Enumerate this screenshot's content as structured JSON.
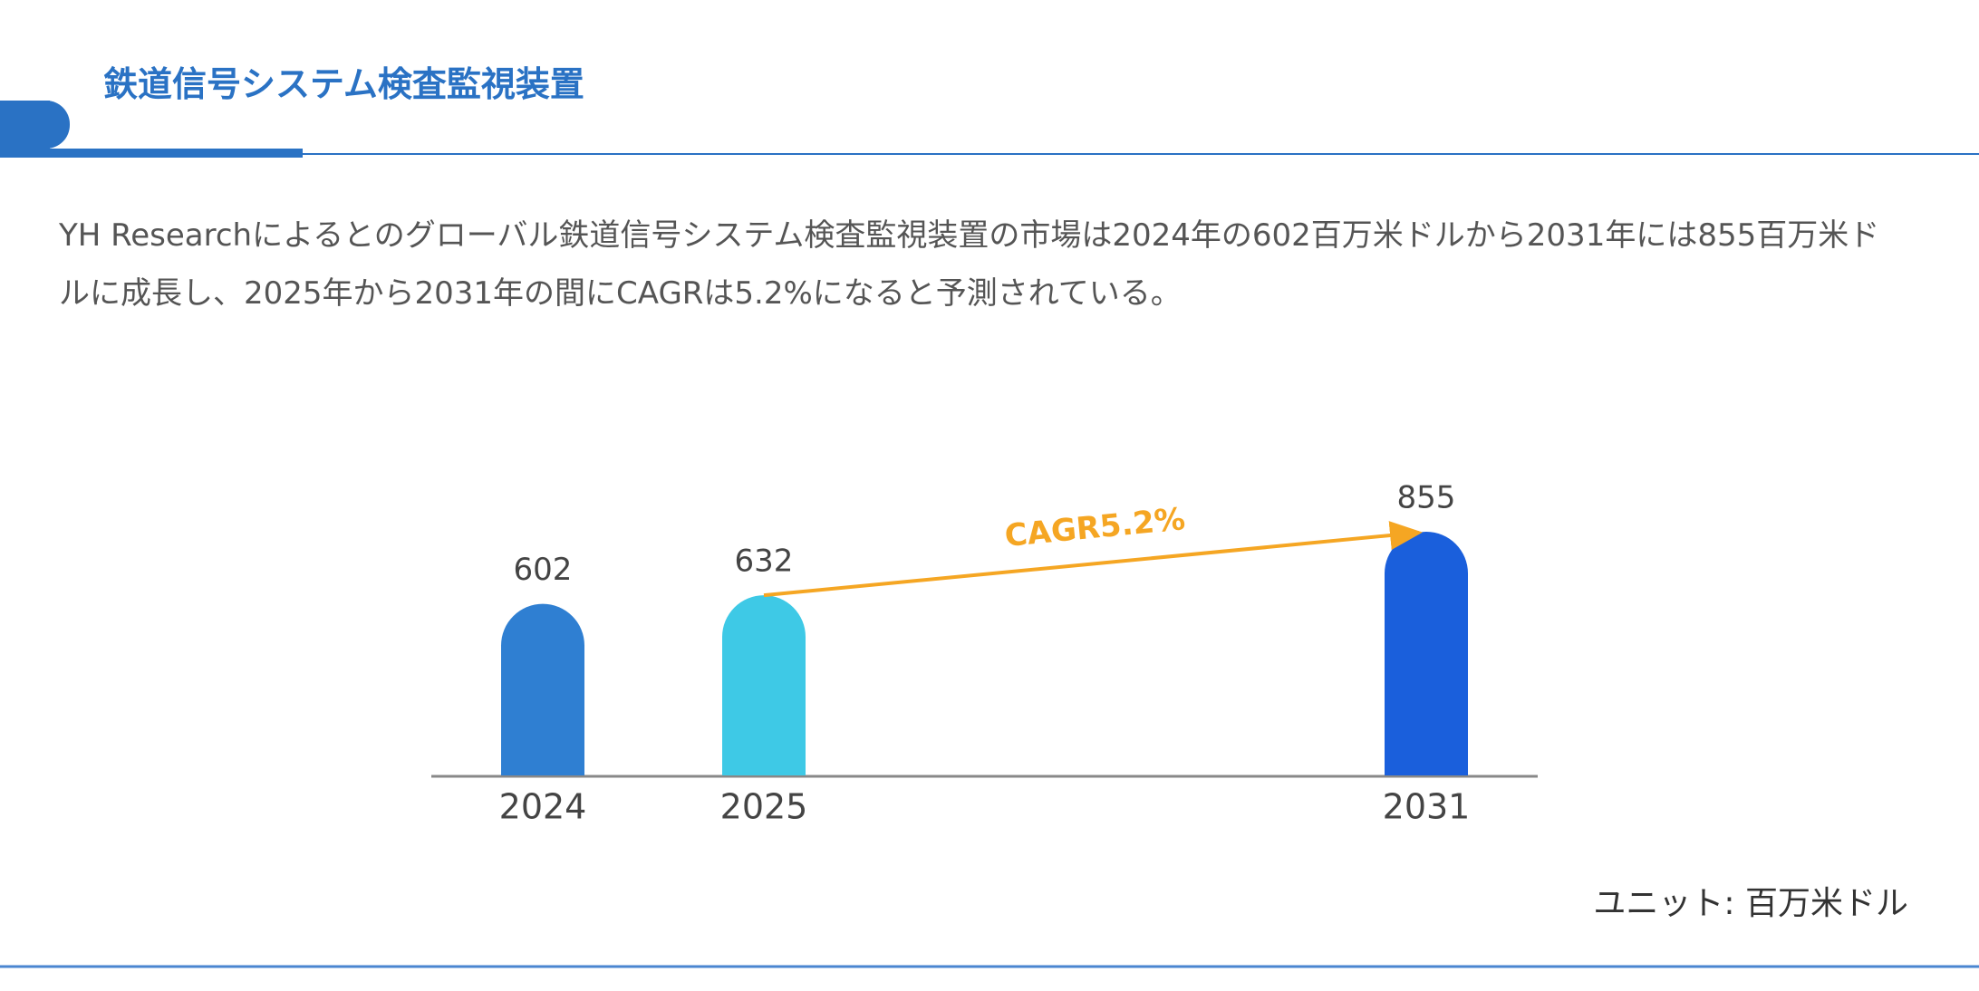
{
  "header": {
    "title": "鉄道信号システム検査監視装置"
  },
  "description": "YH Researchによるとのグローバル鉄道信号システム検査監視装置の市場は2024年の602百万米ドルから2031年には855百万米ドルに成長し、2025年から2031年の間にCAGRは5.2%になると予測されている。",
  "chart_data": {
    "type": "bar",
    "categories": [
      "2024",
      "2025",
      "2031"
    ],
    "values": [
      602,
      632,
      855
    ],
    "colors": [
      "#2f7fd2",
      "#3ec9e6",
      "#1a5fdc"
    ],
    "annotation": "CAGR5.2%",
    "unit_label": "ユニット: 百万米ドル"
  }
}
